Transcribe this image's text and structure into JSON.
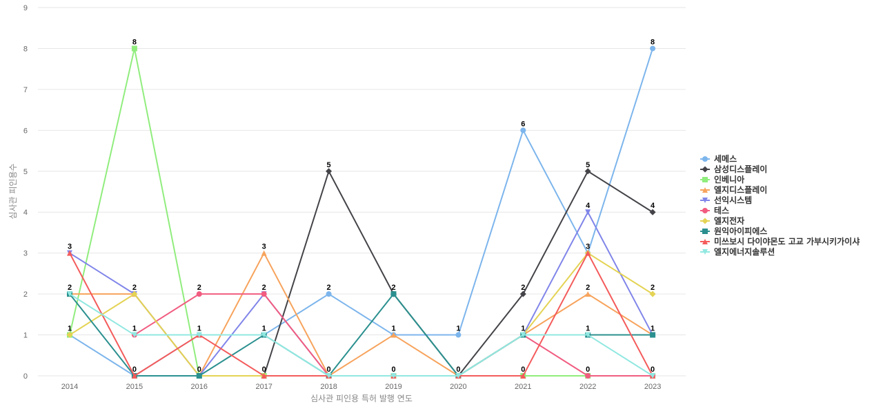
{
  "chart_data": {
    "type": "line",
    "xlabel": "심사관 피인용 특허 발행 연도",
    "ylabel": "심사관 피인용수",
    "ylim": [
      0,
      9
    ],
    "yticks": [
      "0",
      "1",
      "2",
      "3",
      "4",
      "5",
      "6",
      "7",
      "8",
      "9"
    ],
    "categories": [
      "2014",
      "2015",
      "2016",
      "2017",
      "2018",
      "2019",
      "2020",
      "2021",
      "2022",
      "2023"
    ],
    "legend_position": "right",
    "grid": true,
    "series": [
      {
        "name": "세메스",
        "color": "#7cb5ec",
        "marker": "circle",
        "values": [
          1,
          0,
          1,
          1,
          2,
          1,
          1,
          6,
          3,
          8
        ]
      },
      {
        "name": "삼성디스플레이",
        "color": "#434348",
        "marker": "diamond",
        "values": [
          null,
          null,
          null,
          0,
          5,
          2,
          0,
          2,
          5,
          4
        ]
      },
      {
        "name": "인베니아",
        "color": "#90ed7d",
        "marker": "square",
        "values": [
          1,
          8,
          0,
          0,
          0,
          0,
          0,
          0,
          0,
          0
        ]
      },
      {
        "name": "엘지디스플레이",
        "color": "#f7a35c",
        "marker": "triangle",
        "values": [
          2,
          2,
          0,
          3,
          0,
          1,
          0,
          1,
          2,
          1
        ]
      },
      {
        "name": "선익시스템",
        "color": "#8085e9",
        "marker": "triangle-down",
        "values": [
          3,
          2,
          0,
          2,
          0,
          0,
          0,
          1,
          4,
          1
        ]
      },
      {
        "name": "테스",
        "color": "#f15c80",
        "marker": "circle",
        "values": [
          null,
          1,
          2,
          2,
          0,
          0,
          0,
          1,
          0,
          0
        ]
      },
      {
        "name": "엘지전자",
        "color": "#e4d354",
        "marker": "diamond",
        "values": [
          1,
          2,
          0,
          0,
          0,
          0,
          0,
          1,
          3,
          2
        ]
      },
      {
        "name": "원익아이피에스",
        "color": "#2b908f",
        "marker": "square",
        "values": [
          2,
          0,
          0,
          1,
          0,
          2,
          0,
          1,
          1,
          1
        ]
      },
      {
        "name": "미쓰보시 다이야몬도 고교 가부시키가이샤",
        "color": "#f45b5b",
        "marker": "triangle",
        "values": [
          3,
          0,
          1,
          0,
          0,
          0,
          0,
          0,
          3,
          0
        ]
      },
      {
        "name": "엘지에너지솔루션",
        "color": "#91e8e1",
        "marker": "triangle-down",
        "values": [
          2,
          1,
          1,
          1,
          0,
          0,
          0,
          1,
          1,
          0
        ]
      }
    ],
    "data_labels": [
      {
        "x": "2014",
        "value": "3",
        "y": 3
      },
      {
        "x": "2014",
        "value": "2",
        "y": 2
      },
      {
        "x": "2014",
        "value": "1",
        "y": 1
      },
      {
        "x": "2015",
        "value": "8",
        "y": 8
      },
      {
        "x": "2015",
        "value": "2",
        "y": 2
      },
      {
        "x": "2015",
        "value": "1",
        "y": 1
      },
      {
        "x": "2015",
        "value": "0",
        "y": 0
      },
      {
        "x": "2016",
        "value": "2",
        "y": 2
      },
      {
        "x": "2016",
        "value": "1",
        "y": 1
      },
      {
        "x": "2016",
        "value": "0",
        "y": 0
      },
      {
        "x": "2017",
        "value": "3",
        "y": 3
      },
      {
        "x": "2017",
        "value": "2",
        "y": 2
      },
      {
        "x": "2017",
        "value": "1",
        "y": 1
      },
      {
        "x": "2017",
        "value": "0",
        "y": 0
      },
      {
        "x": "2018",
        "value": "5",
        "y": 5
      },
      {
        "x": "2018",
        "value": "2",
        "y": 2
      },
      {
        "x": "2018",
        "value": "0",
        "y": 0
      },
      {
        "x": "2019",
        "value": "2",
        "y": 2
      },
      {
        "x": "2019",
        "value": "1",
        "y": 1
      },
      {
        "x": "2019",
        "value": "0",
        "y": 0
      },
      {
        "x": "2020",
        "value": "1",
        "y": 1
      },
      {
        "x": "2020",
        "value": "0",
        "y": 0
      },
      {
        "x": "2021",
        "value": "6",
        "y": 6
      },
      {
        "x": "2021",
        "value": "2",
        "y": 2
      },
      {
        "x": "2021",
        "value": "1",
        "y": 1
      },
      {
        "x": "2021",
        "value": "0",
        "y": 0
      },
      {
        "x": "2022",
        "value": "5",
        "y": 5
      },
      {
        "x": "2022",
        "value": "4",
        "y": 4
      },
      {
        "x": "2022",
        "value": "3",
        "y": 3
      },
      {
        "x": "2022",
        "value": "2",
        "y": 2
      },
      {
        "x": "2022",
        "value": "1",
        "y": 1
      },
      {
        "x": "2022",
        "value": "0",
        "y": 0
      },
      {
        "x": "2023",
        "value": "8",
        "y": 8
      },
      {
        "x": "2023",
        "value": "4",
        "y": 4
      },
      {
        "x": "2023",
        "value": "2",
        "y": 2
      },
      {
        "x": "2023",
        "value": "1",
        "y": 1
      },
      {
        "x": "2023",
        "value": "0",
        "y": 0
      }
    ]
  }
}
